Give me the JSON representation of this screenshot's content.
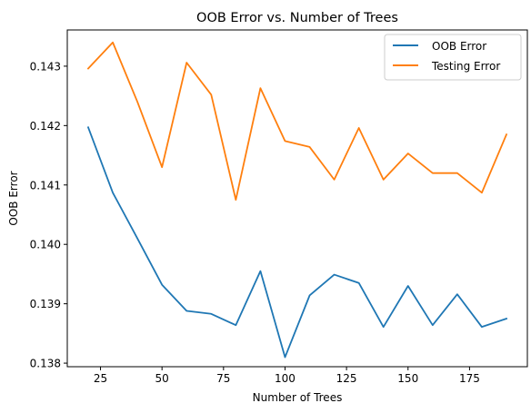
{
  "chart_data": {
    "type": "line",
    "title": "OOB Error vs. Number of Trees",
    "xlabel": "Number of Trees",
    "ylabel": "OOB Error",
    "xlim": [
      11.5,
      198.5
    ],
    "ylim": [
      0.13794,
      0.14361
    ],
    "xticks": [
      25,
      50,
      75,
      100,
      125,
      150,
      175
    ],
    "xtick_labels": [
      "25",
      "50",
      "75",
      "100",
      "125",
      "150",
      "175"
    ],
    "yticks": [
      0.138,
      0.139,
      0.14,
      0.141,
      0.142,
      0.143
    ],
    "ytick_labels": [
      "0.138",
      "0.139",
      "0.140",
      "0.141",
      "0.142",
      "0.143"
    ],
    "grid": false,
    "legend_position": "top-right",
    "x": [
      20,
      30,
      40,
      50,
      60,
      70,
      80,
      90,
      100,
      110,
      120,
      130,
      140,
      150,
      160,
      170,
      180,
      190
    ],
    "series": [
      {
        "name": "OOB Error",
        "color": "#1f77b4",
        "values": [
          0.14197,
          0.14087,
          0.1401,
          0.13932,
          0.13888,
          0.13883,
          0.13864,
          0.13955,
          0.1381,
          0.13914,
          0.13949,
          0.13935,
          0.13861,
          0.1393,
          0.13864,
          0.13916,
          0.13861,
          0.13875
        ]
      },
      {
        "name": "Testing Error",
        "color": "#ff7f0e",
        "values": [
          0.14296,
          0.1434,
          0.1424,
          0.1413,
          0.14306,
          0.14252,
          0.14075,
          0.14263,
          0.14174,
          0.14164,
          0.14109,
          0.14196,
          0.14109,
          0.14153,
          0.1412,
          0.1412,
          0.14087,
          0.14185
        ]
      }
    ]
  }
}
